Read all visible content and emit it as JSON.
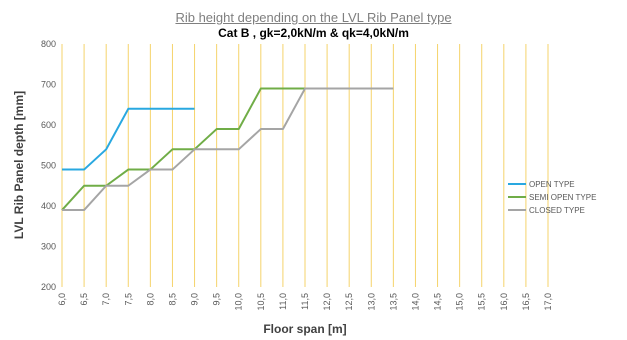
{
  "chart_data": {
    "type": "line",
    "title": "Rib height depending on the LVL Rib Panel type",
    "subtitle": "Cat B , gk=2,0kN/m & qk=4,0kN/m",
    "xlabel": "Floor span [m]",
    "ylabel": "LVL Rib Panel depth [mm]",
    "x_ticks": [
      "6,0",
      "6,5",
      "7,0",
      "7,5",
      "8,0",
      "8,5",
      "9,0",
      "9,5",
      "10,0",
      "10,5",
      "11,0",
      "11,5",
      "12,0",
      "12,5",
      "13,0",
      "13,5",
      "14,0",
      "14,5",
      "15,0",
      "15,5",
      "16,0",
      "16,5",
      "17,0"
    ],
    "y_ticks": [
      "200",
      "300",
      "400",
      "500",
      "600",
      "700",
      "800"
    ],
    "xlim": [
      6.0,
      17.0
    ],
    "ylim": [
      200,
      800
    ],
    "grid": "vertical",
    "grid_color": "#f5d36b",
    "legend_position": "right",
    "series": [
      {
        "name": "OPEN TYPE",
        "color": "#29a8e0",
        "points": [
          [
            6.0,
            490
          ],
          [
            6.5,
            490
          ],
          [
            7.0,
            540
          ],
          [
            7.5,
            640
          ],
          [
            8.0,
            640
          ],
          [
            8.5,
            640
          ],
          [
            9.0,
            640
          ]
        ]
      },
      {
        "name": "SEMI OPEN TYPE",
        "color": "#70ad47",
        "points": [
          [
            6.0,
            390
          ],
          [
            6.5,
            450
          ],
          [
            7.0,
            450
          ],
          [
            7.5,
            490
          ],
          [
            8.0,
            490
          ],
          [
            8.5,
            540
          ],
          [
            9.0,
            540
          ],
          [
            9.5,
            590
          ],
          [
            10.0,
            590
          ],
          [
            10.5,
            690
          ],
          [
            11.0,
            690
          ],
          [
            11.5,
            690
          ]
        ]
      },
      {
        "name": "CLOSED TYPE",
        "color": "#a5a5a5",
        "points": [
          [
            6.0,
            390
          ],
          [
            6.5,
            390
          ],
          [
            7.0,
            450
          ],
          [
            7.5,
            450
          ],
          [
            8.0,
            490
          ],
          [
            8.5,
            490
          ],
          [
            9.0,
            540
          ],
          [
            9.5,
            540
          ],
          [
            10.0,
            540
          ],
          [
            10.5,
            590
          ],
          [
            11.0,
            590
          ],
          [
            11.5,
            690
          ],
          [
            12.0,
            690
          ],
          [
            12.5,
            690
          ],
          [
            13.0,
            690
          ],
          [
            13.5,
            690
          ]
        ]
      }
    ]
  }
}
